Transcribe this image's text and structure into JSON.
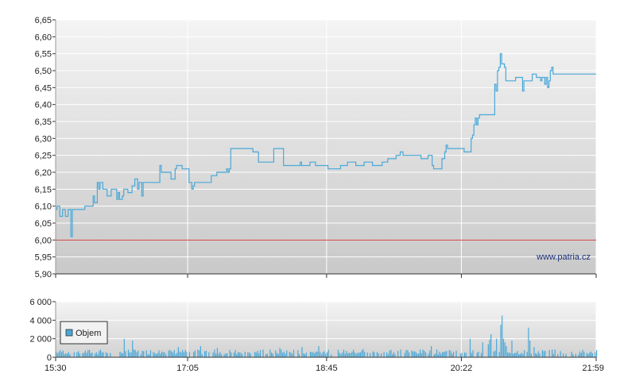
{
  "chart_data": [
    {
      "type": "line",
      "ylim": [
        5.9,
        6.65
      ],
      "y_ticks": [
        "6,65",
        "6,60",
        "6,55",
        "6,50",
        "6,45",
        "6,40",
        "6,35",
        "6,30",
        "6,25",
        "6,20",
        "6,15",
        "6,10",
        "6,05",
        "6,00",
        "5,95",
        "5,90"
      ],
      "y_tick_values": [
        6.65,
        6.6,
        6.55,
        6.5,
        6.45,
        6.4,
        6.35,
        6.3,
        6.25,
        6.2,
        6.15,
        6.1,
        6.05,
        6.0,
        5.95,
        5.9
      ],
      "x_range": [
        "15:30",
        "21:59"
      ],
      "reference_line": 6.0,
      "watermark": "www.patria.cz",
      "grid": true,
      "series": [
        {
          "color": "#4aa8d8",
          "points": [
            [
              "15:30",
              6.09
            ],
            [
              "15:31",
              6.1
            ],
            [
              "15:33",
              6.07
            ],
            [
              "15:35",
              6.09
            ],
            [
              "15:37",
              6.07
            ],
            [
              "15:39",
              6.09
            ],
            [
              "15:41",
              6.01
            ],
            [
              "15:42",
              6.09
            ],
            [
              "15:50",
              6.09
            ],
            [
              "15:51",
              6.1
            ],
            [
              "15:55",
              6.1
            ],
            [
              "15:57",
              6.13
            ],
            [
              "15:58",
              6.11
            ],
            [
              "16:00",
              6.17
            ],
            [
              "16:01",
              6.15
            ],
            [
              "16:02",
              6.17
            ],
            [
              "16:04",
              6.15
            ],
            [
              "16:06",
              6.15
            ],
            [
              "16:07",
              6.13
            ],
            [
              "16:09",
              6.13
            ],
            [
              "16:10",
              6.15
            ],
            [
              "16:13",
              6.15
            ],
            [
              "16:14",
              6.12
            ],
            [
              "16:15",
              6.14
            ],
            [
              "16:16",
              6.12
            ],
            [
              "16:18",
              6.13
            ],
            [
              "16:19",
              6.15
            ],
            [
              "16:21",
              6.15
            ],
            [
              "16:22",
              6.14
            ],
            [
              "16:24",
              6.14
            ],
            [
              "16:25",
              6.16
            ],
            [
              "16:27",
              6.18
            ],
            [
              "16:29",
              6.15
            ],
            [
              "16:30",
              6.17
            ],
            [
              "16:32",
              6.13
            ],
            [
              "16:33",
              6.17
            ],
            [
              "16:44",
              6.17
            ],
            [
              "16:45",
              6.22
            ],
            [
              "16:46",
              6.2
            ],
            [
              "16:52",
              6.2
            ],
            [
              "16:53",
              6.18
            ],
            [
              "16:56",
              6.21
            ],
            [
              "16:57",
              6.22
            ],
            [
              "17:00",
              6.22
            ],
            [
              "17:01",
              6.21
            ],
            [
              "17:05",
              6.21
            ],
            [
              "17:06",
              6.17
            ],
            [
              "17:07",
              6.17
            ],
            [
              "17:08",
              6.15
            ],
            [
              "17:09",
              6.16
            ],
            [
              "17:10",
              6.17
            ],
            [
              "17:21",
              6.17
            ],
            [
              "17:22",
              6.19
            ],
            [
              "17:26",
              6.2
            ],
            [
              "17:33",
              6.21
            ],
            [
              "17:34",
              6.2
            ],
            [
              "17:35",
              6.21
            ],
            [
              "17:36",
              6.27
            ],
            [
              "17:51",
              6.27
            ],
            [
              "17:52",
              6.26
            ],
            [
              "17:55",
              6.26
            ],
            [
              "17:56",
              6.23
            ],
            [
              "18:06",
              6.23
            ],
            [
              "18:07",
              6.27
            ],
            [
              "18:14",
              6.22
            ],
            [
              "18:25",
              6.22
            ],
            [
              "18:26",
              6.23
            ],
            [
              "18:27",
              6.22
            ],
            [
              "18:32",
              6.22
            ],
            [
              "18:33",
              6.23
            ],
            [
              "18:36",
              6.23
            ],
            [
              "18:37",
              6.22
            ],
            [
              "18:45",
              6.22
            ],
            [
              "18:46",
              6.21
            ],
            [
              "18:54",
              6.21
            ],
            [
              "18:55",
              6.22
            ],
            [
              "18:59",
              6.22
            ],
            [
              "19:00",
              6.23
            ],
            [
              "19:05",
              6.23
            ],
            [
              "19:06",
              6.22
            ],
            [
              "19:11",
              6.22
            ],
            [
              "19:12",
              6.23
            ],
            [
              "19:17",
              6.23
            ],
            [
              "19:18",
              6.22
            ],
            [
              "19:24",
              6.22
            ],
            [
              "19:25",
              6.23
            ],
            [
              "19:29",
              6.24
            ],
            [
              "19:34",
              6.24
            ],
            [
              "19:35",
              6.25
            ],
            [
              "19:38",
              6.26
            ],
            [
              "19:40",
              6.25
            ],
            [
              "19:52",
              6.25
            ],
            [
              "19:53",
              6.24
            ],
            [
              "19:57",
              6.24
            ],
            [
              "19:58",
              6.25
            ],
            [
              "20:00",
              6.25
            ],
            [
              "20:01",
              6.22
            ],
            [
              "20:02",
              6.21
            ],
            [
              "20:06",
              6.21
            ],
            [
              "20:08",
              6.24
            ],
            [
              "20:10",
              6.26
            ],
            [
              "20:11",
              6.28
            ],
            [
              "20:12",
              6.27
            ],
            [
              "20:23",
              6.27
            ],
            [
              "20:24",
              6.26
            ],
            [
              "20:28",
              6.26
            ],
            [
              "20:29",
              6.3
            ],
            [
              "20:30",
              6.31
            ],
            [
              "20:31",
              6.34
            ],
            [
              "20:32",
              6.36
            ],
            [
              "20:33",
              6.34
            ],
            [
              "20:34",
              6.36
            ],
            [
              "20:35",
              6.37
            ],
            [
              "20:45",
              6.37
            ],
            [
              "20:46",
              6.46
            ],
            [
              "20:47",
              6.44
            ],
            [
              "20:48",
              6.5
            ],
            [
              "20:49",
              6.51
            ],
            [
              "20:50",
              6.55
            ],
            [
              "20:51",
              6.52
            ],
            [
              "20:53",
              6.51
            ],
            [
              "20:54",
              6.47
            ],
            [
              "21:00",
              6.47
            ],
            [
              "21:01",
              6.48
            ],
            [
              "21:05",
              6.48
            ],
            [
              "21:06",
              6.44
            ],
            [
              "21:07",
              6.47
            ],
            [
              "21:12",
              6.47
            ],
            [
              "21:13",
              6.49
            ],
            [
              "21:16",
              6.48
            ],
            [
              "21:19",
              6.47
            ],
            [
              "21:20",
              6.48
            ],
            [
              "21:22",
              6.46
            ],
            [
              "21:23",
              6.48
            ],
            [
              "21:24",
              6.45
            ],
            [
              "21:25",
              6.47
            ],
            [
              "21:26",
              6.5
            ],
            [
              "21:27",
              6.51
            ],
            [
              "21:28",
              6.49
            ]
          ]
        }
      ]
    },
    {
      "type": "bar",
      "ylim": [
        0,
        6000
      ],
      "y_ticks": [
        "6 000",
        "4 000",
        "2 000",
        "0"
      ],
      "y_tick_values": [
        6000,
        4000,
        2000,
        0
      ],
      "x_ticks": [
        "15:30",
        "17:05",
        "18:45",
        "20:22",
        "21:59"
      ],
      "legend": "Objem",
      "legend_position": "left",
      "color": "#4aa8d8",
      "spikes": [
        [
          "16:19",
          2000
        ],
        [
          "16:25",
          1800
        ],
        [
          "16:58",
          1100
        ],
        [
          "17:14",
          1200
        ],
        [
          "17:26",
          1000
        ],
        [
          "18:11",
          1000
        ],
        [
          "18:27",
          1100
        ],
        [
          "18:39",
          1200
        ],
        [
          "19:11",
          900
        ],
        [
          "19:31",
          800
        ],
        [
          "20:00",
          1200
        ],
        [
          "20:28",
          2000
        ],
        [
          "20:37",
          1600
        ],
        [
          "20:41",
          1400
        ],
        [
          "20:42",
          1900
        ],
        [
          "20:43",
          2500
        ],
        [
          "20:47",
          2000
        ],
        [
          "20:50",
          3500
        ],
        [
          "20:51",
          4500
        ],
        [
          "20:52",
          2000
        ],
        [
          "20:53",
          1600
        ],
        [
          "20:54",
          1200
        ],
        [
          "20:58",
          1800
        ],
        [
          "21:10",
          3200
        ],
        [
          "21:11",
          1800
        ],
        [
          "21:14",
          1100
        ]
      ],
      "baseline_volume": 600
    }
  ]
}
